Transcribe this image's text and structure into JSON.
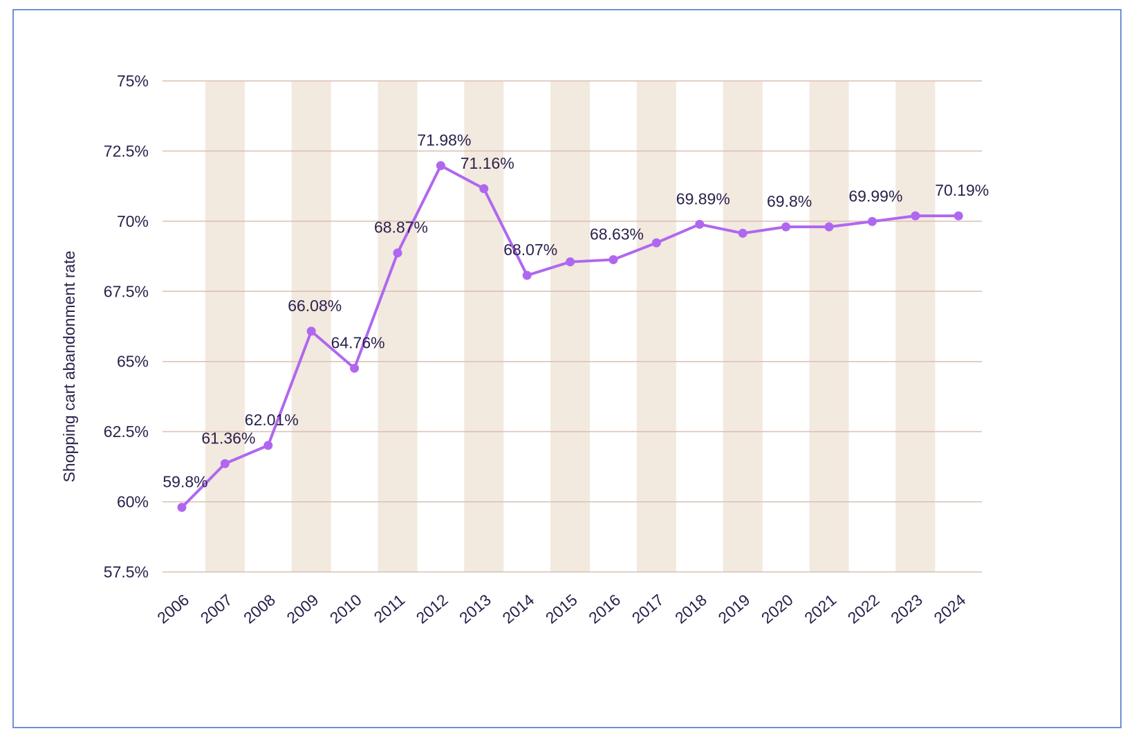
{
  "chart_data": {
    "type": "line",
    "title": "",
    "xlabel": "",
    "ylabel": "Shopping cart abandonment rate",
    "ylim": [
      57.5,
      75
    ],
    "y_ticks": [
      57.5,
      60,
      62.5,
      65,
      67.5,
      70,
      72.5,
      75
    ],
    "y_tick_labels": [
      "57.5%",
      "60%",
      "62.5%",
      "65%",
      "67.5%",
      "70%",
      "72.5%",
      "75%"
    ],
    "categories": [
      "2006",
      "2007",
      "2008",
      "2009",
      "2010",
      "2011",
      "2012",
      "2013",
      "2014",
      "2015",
      "2016",
      "2017",
      "2018",
      "2019",
      "2020",
      "2021",
      "2022",
      "2023",
      "2024"
    ],
    "series": [
      {
        "values": [
          59.8,
          61.36,
          62.01,
          66.08,
          64.76,
          68.87,
          71.98,
          71.16,
          68.07,
          68.55,
          68.63,
          69.23,
          69.89,
          69.57,
          69.8,
          69.8,
          69.99,
          70.19,
          70.19
        ]
      }
    ],
    "data_labels": [
      {
        "index": 0,
        "text": "59.8%"
      },
      {
        "index": 1,
        "text": "61.36%"
      },
      {
        "index": 2,
        "text": "62.01%"
      },
      {
        "index": 3,
        "text": "66.08%"
      },
      {
        "index": 4,
        "text": "64.76%"
      },
      {
        "index": 5,
        "text": "68.87%"
      },
      {
        "index": 6,
        "text": "71.98%"
      },
      {
        "index": 7,
        "text": "71.16%"
      },
      {
        "index": 8,
        "text": "68.07%"
      },
      {
        "index": 10,
        "text": "68.63%"
      },
      {
        "index": 12,
        "text": "69.89%"
      },
      {
        "index": 14,
        "text": "69.8%"
      },
      {
        "index": 16,
        "text": "69.99%"
      },
      {
        "index": 18,
        "text": "70.19%"
      }
    ],
    "grid": true,
    "legend": "none",
    "colors": {
      "line": "#b067f0",
      "band": "#f2e9df",
      "grid": "#d9bfb3",
      "text": "#2a1f4a",
      "frame": "#6f8fd8"
    }
  }
}
